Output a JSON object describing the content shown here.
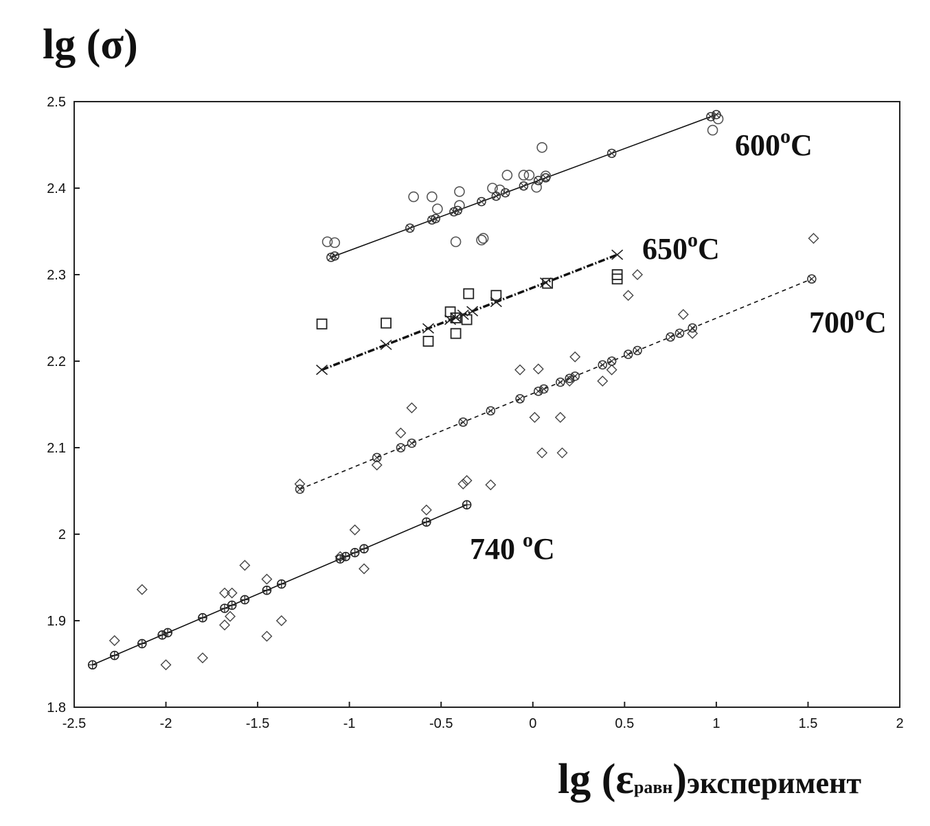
{
  "chart_data": {
    "type": "scatter",
    "title": "",
    "ylabel": "lg (σ)",
    "xlabel": {
      "main": "lg (ε",
      "sub": "равн",
      "close": ")",
      "suffix": "эксперимент"
    },
    "xlim": [
      -2.5,
      2
    ],
    "ylim": [
      1.8,
      2.5
    ],
    "xticks": [
      "-2.5",
      "-2",
      "-1.5",
      "-1",
      "-0.5",
      "0",
      "0.5",
      "1",
      "1.5",
      "2"
    ],
    "yticks": [
      "1.8",
      "1.9",
      "2",
      "2.1",
      "2.2",
      "2.3",
      "2.4",
      "2.5"
    ],
    "grid": false,
    "series": [
      {
        "name": "600",
        "label": "600",
        "unit": "o",
        "unit_c": "C",
        "line_style": "solid",
        "marker": "circle",
        "fit": [
          [
            -1.1,
            2.32
          ],
          [
            1.0,
            2.485
          ]
        ],
        "model_x": [
          -1.1,
          -1.08,
          -0.67,
          -0.55,
          -0.53,
          -0.43,
          -0.41,
          -0.28,
          -0.2,
          -0.15,
          -0.05,
          0.03,
          0.07,
          0.43,
          0.97,
          1.0
        ],
        "points": [
          [
            -1.12,
            2.338
          ],
          [
            -1.08,
            2.337
          ],
          [
            -0.65,
            2.39
          ],
          [
            -0.55,
            2.39
          ],
          [
            -0.52,
            2.376
          ],
          [
            -0.42,
            2.338
          ],
          [
            -0.4,
            2.396
          ],
          [
            -0.4,
            2.38
          ],
          [
            -0.28,
            2.34
          ],
          [
            -0.27,
            2.342
          ],
          [
            -0.22,
            2.4
          ],
          [
            -0.18,
            2.398
          ],
          [
            -0.14,
            2.415
          ],
          [
            -0.05,
            2.415
          ],
          [
            -0.02,
            2.415
          ],
          [
            0.02,
            2.401
          ],
          [
            0.05,
            2.447
          ],
          [
            0.07,
            2.414
          ],
          [
            0.98,
            2.467
          ],
          [
            1.01,
            2.48
          ]
        ]
      },
      {
        "name": "650",
        "label": "650",
        "unit": "o",
        "unit_c": "C",
        "line_style": "dashdot",
        "marker": "square",
        "fit": [
          [
            -1.15,
            2.19
          ],
          [
            0.46,
            2.323
          ]
        ],
        "model_x": [
          -1.15,
          -0.8,
          -0.57,
          -0.45,
          -0.42,
          -0.38,
          -0.33,
          -0.2,
          0.07,
          0.46
        ],
        "points": [
          [
            -1.15,
            2.243
          ],
          [
            -0.8,
            2.244
          ],
          [
            -0.57,
            2.223
          ],
          [
            -0.45,
            2.257
          ],
          [
            -0.42,
            2.232
          ],
          [
            -0.42,
            2.25
          ],
          [
            -0.36,
            2.248
          ],
          [
            -0.35,
            2.278
          ],
          [
            -0.2,
            2.276
          ],
          [
            0.08,
            2.29
          ],
          [
            0.46,
            2.3
          ],
          [
            0.46,
            2.295
          ]
        ]
      },
      {
        "name": "700",
        "label": "700",
        "unit": "o",
        "unit_c": "C",
        "line_style": "dashed",
        "marker": "diamond",
        "fit": [
          [
            -1.27,
            2.052
          ],
          [
            1.52,
            2.295
          ]
        ],
        "model_x": [
          -1.27,
          -0.85,
          -0.72,
          -0.66,
          -0.38,
          -0.23,
          -0.07,
          0.03,
          0.06,
          0.15,
          0.2,
          0.23,
          0.38,
          0.43,
          0.52,
          0.57,
          0.75,
          0.8,
          0.87,
          1.52
        ],
        "points": [
          [
            -1.27,
            2.058
          ],
          [
            -0.85,
            2.08
          ],
          [
            -0.72,
            2.117
          ],
          [
            -0.66,
            2.146
          ],
          [
            -0.07,
            2.19
          ],
          [
            0.01,
            2.135
          ],
          [
            0.03,
            2.191
          ],
          [
            0.05,
            2.094
          ],
          [
            0.15,
            2.135
          ],
          [
            0.16,
            2.094
          ],
          [
            0.2,
            2.177
          ],
          [
            0.23,
            2.205
          ],
          [
            0.38,
            2.177
          ],
          [
            0.43,
            2.19
          ],
          [
            0.52,
            2.276
          ],
          [
            0.57,
            2.3
          ],
          [
            0.82,
            2.254
          ],
          [
            0.87,
            2.232
          ],
          [
            1.53,
            2.342
          ]
        ]
      },
      {
        "name": "740",
        "label": "740 ",
        "unit": "o",
        "unit_c": "C",
        "line_style": "solid",
        "marker": "diamond",
        "fit": [
          [
            -2.4,
            1.849
          ],
          [
            -0.36,
            2.034
          ]
        ],
        "model_x": [
          -2.4,
          -2.28,
          -2.13,
          -2.02,
          -1.99,
          -1.8,
          -1.68,
          -1.64,
          -1.57,
          -1.45,
          -1.37,
          -1.05,
          -1.02,
          -0.97,
          -0.92,
          -0.58,
          -0.36
        ],
        "points": [
          [
            -2.28,
            1.877
          ],
          [
            -2.13,
            1.936
          ],
          [
            -2.0,
            1.849
          ],
          [
            -1.8,
            1.857
          ],
          [
            -1.68,
            1.932
          ],
          [
            -1.68,
            1.895
          ],
          [
            -1.64,
            1.932
          ],
          [
            -1.65,
            1.905
          ],
          [
            -1.57,
            1.964
          ],
          [
            -1.45,
            1.882
          ],
          [
            -1.45,
            1.948
          ],
          [
            -1.37,
            1.9
          ],
          [
            -1.05,
            1.974
          ],
          [
            -0.97,
            2.005
          ],
          [
            -0.92,
            1.96
          ],
          [
            -0.58,
            2.028
          ],
          [
            -0.38,
            2.058
          ],
          [
            -0.36,
            2.062
          ],
          [
            -0.23,
            2.057
          ]
        ]
      }
    ]
  }
}
